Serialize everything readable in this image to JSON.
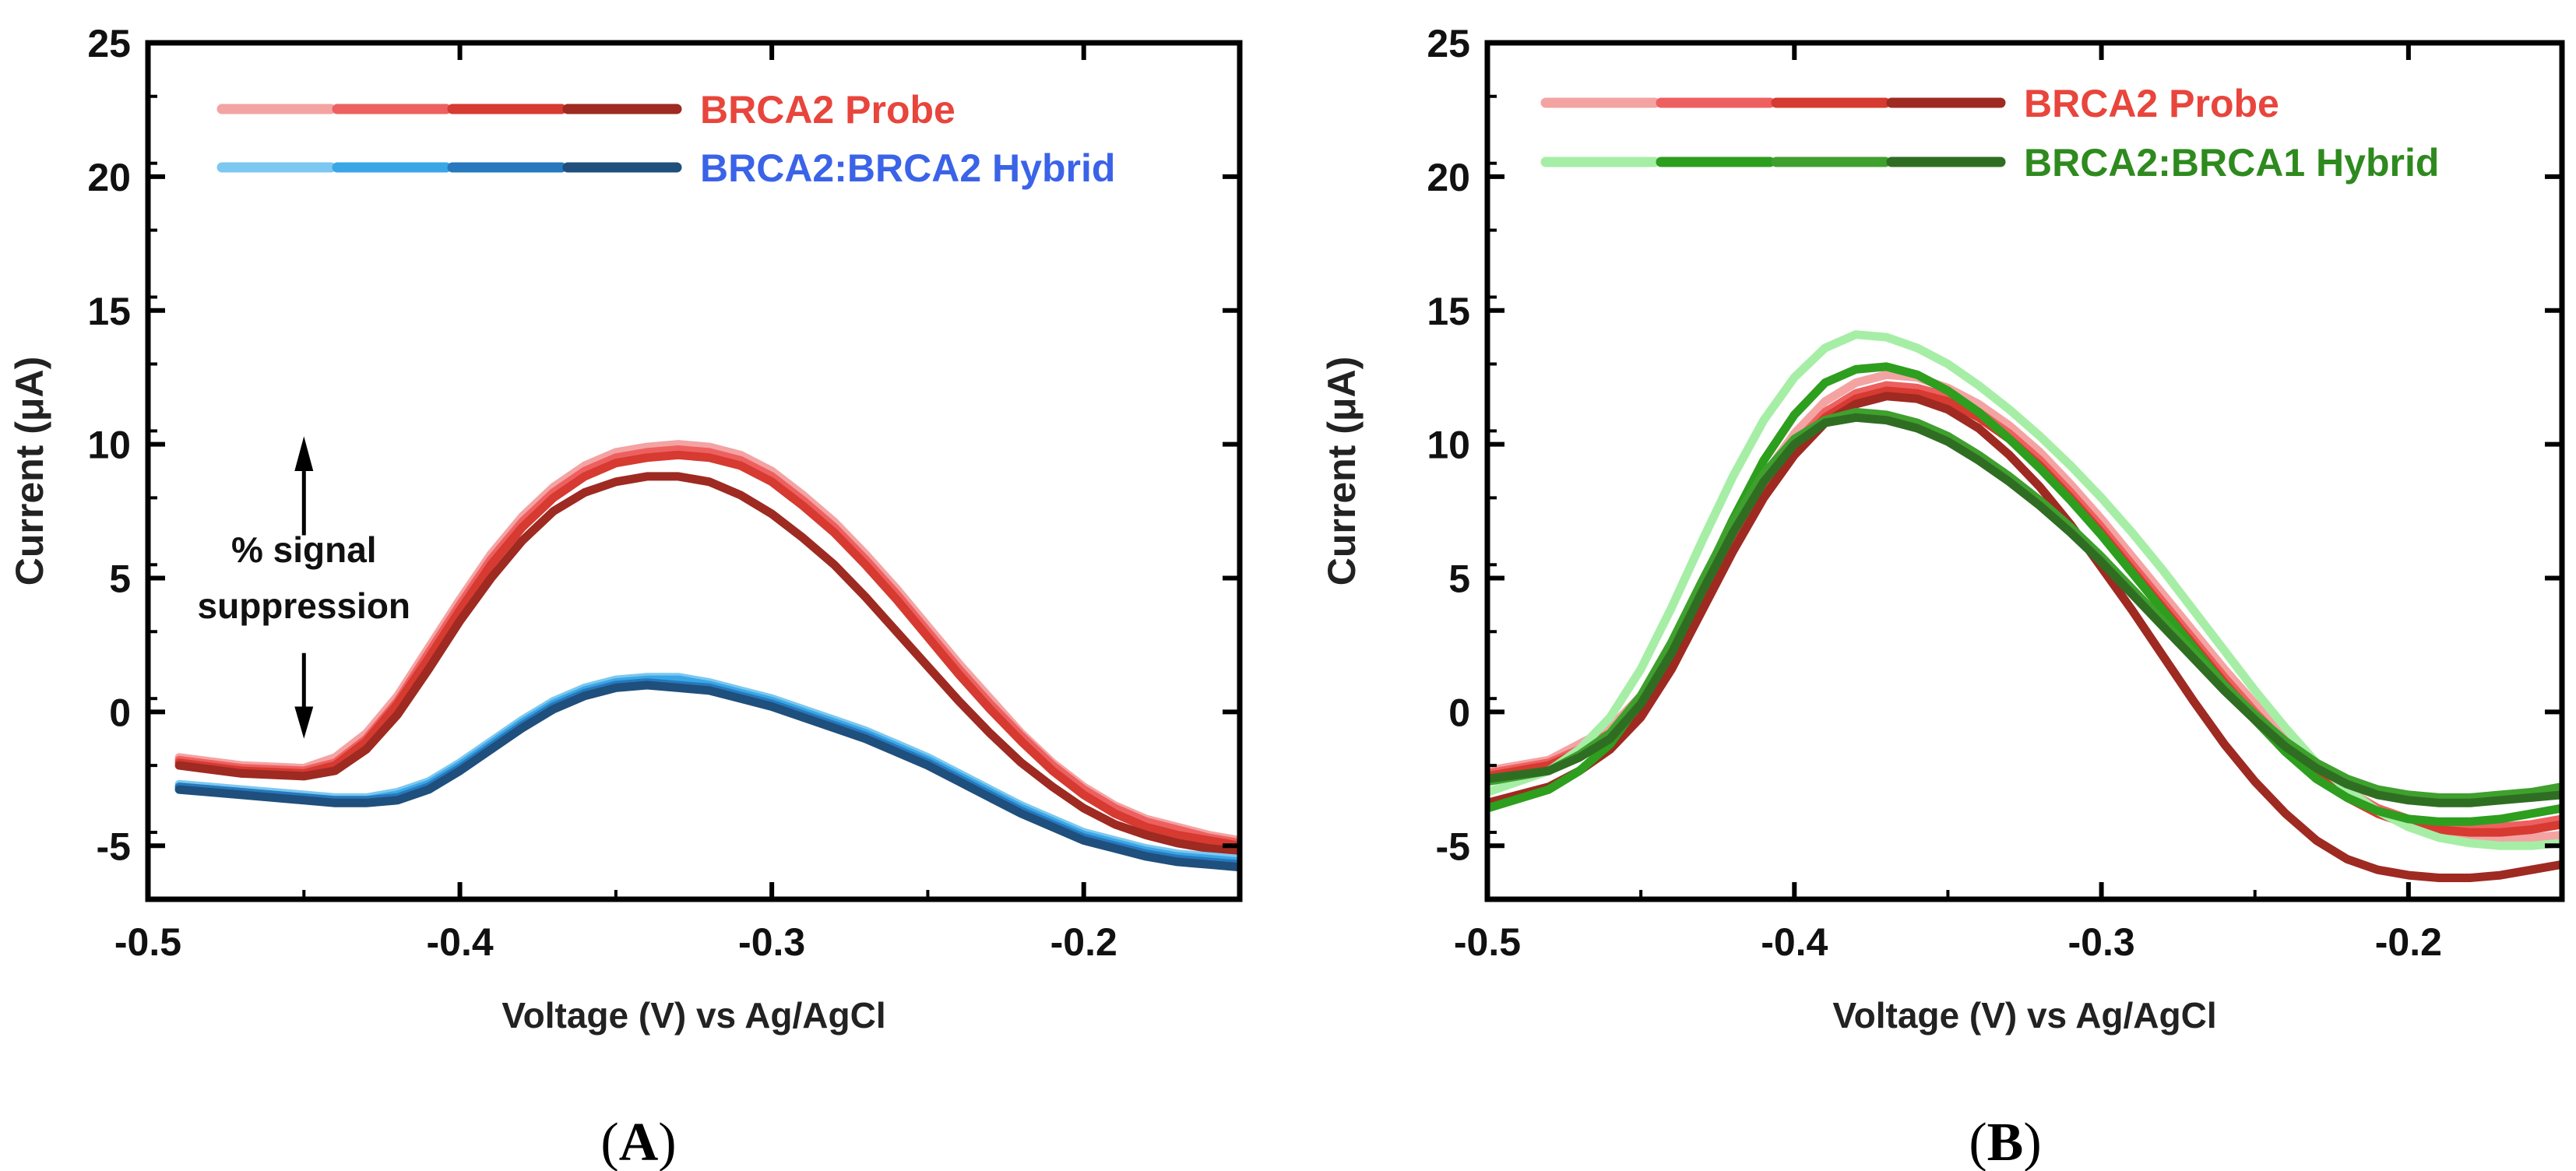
{
  "chart_data": [
    {
      "type": "line",
      "panel": "(A)",
      "panel_label": {
        "open": "(",
        "letter": "A",
        "close": ")"
      },
      "xlabel": "Voltage (V) vs Ag/AgCl",
      "ylabel": "Current (μA)",
      "xlim": [
        -0.5,
        -0.15
      ],
      "ylim": [
        -7,
        25
      ],
      "xticks": [
        -0.5,
        -0.4,
        -0.3,
        -0.2
      ],
      "yticks": [
        -5,
        0,
        5,
        10,
        15,
        20,
        25
      ],
      "x_tick_labels": [
        "-0.5",
        "-0.4",
        "-0.3",
        "-0.2"
      ],
      "y_tick_labels": [
        "-5",
        "0",
        "5",
        "10",
        "15",
        "20",
        "25"
      ],
      "legend_position": "top-left",
      "legend": [
        {
          "label": "BRCA2 Probe",
          "text_color": "#e8453c",
          "colors": [
            "#f4a3a3",
            "#ee6060",
            "#d63a30",
            "#9e2a22"
          ]
        },
        {
          "label": "BRCA2:BRCA2 Hybrid",
          "text_color": "#3a63e8",
          "colors": [
            "#7cc8f0",
            "#3aa6e6",
            "#2778bd",
            "#1f4f7c"
          ]
        }
      ],
      "annotation": {
        "line1": "% signal",
        "line2": "suppression"
      },
      "x": [
        -0.49,
        -0.47,
        -0.45,
        -0.44,
        -0.43,
        -0.42,
        -0.41,
        -0.4,
        -0.39,
        -0.38,
        -0.37,
        -0.36,
        -0.35,
        -0.34,
        -0.33,
        -0.32,
        -0.31,
        -0.3,
        -0.29,
        -0.28,
        -0.27,
        -0.26,
        -0.25,
        -0.24,
        -0.23,
        -0.22,
        -0.21,
        -0.2,
        -0.19,
        -0.18,
        -0.17,
        -0.16,
        -0.15
      ],
      "series": [
        {
          "name": "BRCA2 Probe 1",
          "color": "#f4a3a3",
          "values": [
            -1.7,
            -2.0,
            -2.1,
            -1.7,
            -0.8,
            0.6,
            2.4,
            4.2,
            5.9,
            7.3,
            8.4,
            9.2,
            9.7,
            9.9,
            10.0,
            9.9,
            9.6,
            9.0,
            8.1,
            7.1,
            5.9,
            4.6,
            3.2,
            1.8,
            0.5,
            -0.8,
            -1.9,
            -2.8,
            -3.5,
            -4.0,
            -4.3,
            -4.6,
            -4.8
          ]
        },
        {
          "name": "BRCA2 Probe 2",
          "color": "#ee6060",
          "values": [
            -1.8,
            -2.1,
            -2.2,
            -1.9,
            -1.0,
            0.4,
            2.2,
            4.0,
            5.7,
            7.1,
            8.2,
            9.0,
            9.5,
            9.7,
            9.8,
            9.7,
            9.4,
            8.8,
            7.9,
            6.9,
            5.7,
            4.4,
            3.0,
            1.6,
            0.3,
            -0.9,
            -2.0,
            -2.9,
            -3.6,
            -4.1,
            -4.4,
            -4.7,
            -4.9
          ]
        },
        {
          "name": "BRCA2 Probe 3",
          "color": "#d63a30",
          "values": [
            -1.9,
            -2.2,
            -2.3,
            -2.0,
            -1.1,
            0.3,
            2.0,
            3.8,
            5.5,
            6.9,
            8.0,
            8.8,
            9.3,
            9.5,
            9.6,
            9.5,
            9.2,
            8.6,
            7.7,
            6.7,
            5.5,
            4.2,
            2.8,
            1.4,
            0.1,
            -1.1,
            -2.2,
            -3.1,
            -3.8,
            -4.3,
            -4.6,
            -4.8,
            -5.0
          ]
        },
        {
          "name": "BRCA2 Probe 4",
          "color": "#9e2a22",
          "values": [
            -2.0,
            -2.3,
            -2.4,
            -2.2,
            -1.4,
            -0.1,
            1.6,
            3.4,
            5.0,
            6.4,
            7.5,
            8.2,
            8.6,
            8.8,
            8.8,
            8.6,
            8.1,
            7.4,
            6.5,
            5.5,
            4.3,
            3.0,
            1.7,
            0.4,
            -0.8,
            -1.9,
            -2.8,
            -3.6,
            -4.2,
            -4.6,
            -4.9,
            -5.1,
            -5.2
          ]
        },
        {
          "name": "BRCA2:BRCA2 Hybrid 1",
          "color": "#7cc8f0",
          "values": [
            -2.7,
            -2.9,
            -3.1,
            -3.2,
            -3.2,
            -3.0,
            -2.6,
            -1.9,
            -1.1,
            -0.3,
            0.4,
            0.9,
            1.2,
            1.3,
            1.3,
            1.1,
            0.8,
            0.5,
            0.1,
            -0.3,
            -0.7,
            -1.2,
            -1.7,
            -2.3,
            -2.9,
            -3.5,
            -4.0,
            -4.5,
            -4.8,
            -5.1,
            -5.3,
            -5.4,
            -5.5
          ]
        },
        {
          "name": "BRCA2:BRCA2 Hybrid 2",
          "color": "#3aa6e6",
          "values": [
            -2.8,
            -3.0,
            -3.2,
            -3.3,
            -3.3,
            -3.1,
            -2.7,
            -2.0,
            -1.2,
            -0.4,
            0.3,
            0.8,
            1.1,
            1.2,
            1.2,
            1.0,
            0.7,
            0.4,
            0.0,
            -0.4,
            -0.8,
            -1.3,
            -1.8,
            -2.4,
            -3.0,
            -3.6,
            -4.1,
            -4.6,
            -4.9,
            -5.2,
            -5.4,
            -5.5,
            -5.6
          ]
        },
        {
          "name": "BRCA2:BRCA2 Hybrid 3",
          "color": "#2778bd",
          "values": [
            -2.8,
            -3.0,
            -3.2,
            -3.3,
            -3.3,
            -3.2,
            -2.8,
            -2.1,
            -1.3,
            -0.5,
            0.2,
            0.7,
            1.0,
            1.1,
            1.0,
            0.9,
            0.6,
            0.3,
            -0.1,
            -0.5,
            -0.9,
            -1.4,
            -1.9,
            -2.5,
            -3.1,
            -3.7,
            -4.2,
            -4.7,
            -5.0,
            -5.3,
            -5.5,
            -5.6,
            -5.7
          ]
        },
        {
          "name": "BRCA2:BRCA2 Hybrid 4",
          "color": "#1f4f7c",
          "values": [
            -2.9,
            -3.1,
            -3.3,
            -3.4,
            -3.4,
            -3.3,
            -2.9,
            -2.2,
            -1.4,
            -0.6,
            0.1,
            0.6,
            0.9,
            1.0,
            0.9,
            0.8,
            0.5,
            0.2,
            -0.2,
            -0.6,
            -1.0,
            -1.5,
            -2.0,
            -2.6,
            -3.2,
            -3.8,
            -4.3,
            -4.8,
            -5.1,
            -5.4,
            -5.6,
            -5.7,
            -5.8
          ]
        }
      ]
    },
    {
      "type": "line",
      "panel": "(B)",
      "panel_label": {
        "open": "(",
        "letter": "B",
        "close": ")"
      },
      "xlabel": "Voltage (V) vs Ag/AgCl",
      "ylabel": "Current (μA)",
      "xlim": [
        -0.5,
        -0.15
      ],
      "ylim": [
        -7,
        25
      ],
      "xticks": [
        -0.5,
        -0.4,
        -0.3,
        -0.2
      ],
      "yticks": [
        -5,
        0,
        5,
        10,
        15,
        20,
        25
      ],
      "x_tick_labels": [
        "-0.5",
        "-0.4",
        "-0.3",
        "-0.2"
      ],
      "y_tick_labels": [
        "-5",
        "0",
        "5",
        "10",
        "15",
        "20",
        "25"
      ],
      "legend_position": "top-left",
      "legend": [
        {
          "label": "BRCA2 Probe",
          "text_color": "#e8453c",
          "colors": [
            "#f4a3a3",
            "#ee6060",
            "#d63a30",
            "#9e2a22"
          ]
        },
        {
          "label": "BRCA2:BRCA1 Hybrid",
          "text_color": "#2e8a1e",
          "colors": [
            "#a6eea6",
            "#2e9e1e",
            "#3fa02e",
            "#2f6e22"
          ]
        }
      ],
      "x": [
        -0.5,
        -0.48,
        -0.47,
        -0.46,
        -0.45,
        -0.44,
        -0.43,
        -0.42,
        -0.41,
        -0.4,
        -0.39,
        -0.38,
        -0.37,
        -0.36,
        -0.35,
        -0.34,
        -0.33,
        -0.32,
        -0.31,
        -0.3,
        -0.29,
        -0.28,
        -0.27,
        -0.26,
        -0.25,
        -0.24,
        -0.23,
        -0.22,
        -0.21,
        -0.2,
        -0.19,
        -0.18,
        -0.17,
        -0.16,
        -0.15
      ],
      "series": [
        {
          "name": "BRCA2 Probe 1",
          "color": "#f4a3a3",
          "values": [
            -2.2,
            -1.8,
            -1.2,
            -0.6,
            0.6,
            2.4,
            4.6,
            6.8,
            8.8,
            10.4,
            11.6,
            12.3,
            12.6,
            12.5,
            12.1,
            11.5,
            10.7,
            9.7,
            8.5,
            7.2,
            5.8,
            4.4,
            3.0,
            1.6,
            0.3,
            -0.9,
            -2.0,
            -2.9,
            -3.6,
            -4.1,
            -4.4,
            -4.6,
            -4.7,
            -4.7,
            -4.6
          ]
        },
        {
          "name": "BRCA2 Probe 2",
          "color": "#ee6060",
          "values": [
            -2.3,
            -1.9,
            -1.4,
            -0.8,
            0.3,
            2.0,
            4.2,
            6.4,
            8.4,
            10.0,
            11.2,
            11.9,
            12.2,
            12.1,
            11.8,
            11.2,
            10.4,
            9.4,
            8.2,
            6.9,
            5.5,
            4.1,
            2.7,
            1.3,
            0.0,
            -1.2,
            -2.2,
            -3.0,
            -3.6,
            -4.0,
            -4.2,
            -4.3,
            -4.3,
            -4.2,
            -4.0
          ]
        },
        {
          "name": "BRCA2 Probe 3",
          "color": "#d63a30",
          "values": [
            -2.4,
            -2.0,
            -1.5,
            -0.9,
            0.2,
            1.8,
            4.0,
            6.2,
            8.2,
            9.8,
            11.0,
            11.7,
            12.0,
            11.9,
            11.6,
            11.0,
            10.2,
            9.2,
            8.0,
            6.7,
            5.3,
            3.9,
            2.5,
            1.1,
            -0.2,
            -1.4,
            -2.4,
            -3.2,
            -3.8,
            -4.2,
            -4.4,
            -4.5,
            -4.5,
            -4.4,
            -4.2
          ]
        },
        {
          "name": "BRCA2 Probe 4",
          "color": "#9e2a22",
          "values": [
            -3.4,
            -2.8,
            -2.2,
            -1.4,
            -0.2,
            1.6,
            3.8,
            6.0,
            8.0,
            9.6,
            10.8,
            11.5,
            11.8,
            11.7,
            11.3,
            10.6,
            9.6,
            8.4,
            7.0,
            5.4,
            3.8,
            2.1,
            0.4,
            -1.2,
            -2.6,
            -3.8,
            -4.8,
            -5.5,
            -5.9,
            -6.1,
            -6.2,
            -6.2,
            -6.1,
            -5.9,
            -5.7
          ]
        },
        {
          "name": "BRCA2:BRCA1 Hybrid 1",
          "color": "#a6eea6",
          "values": [
            -3.0,
            -2.2,
            -1.4,
            -0.2,
            1.6,
            3.9,
            6.4,
            8.8,
            10.9,
            12.5,
            13.6,
            14.1,
            14.0,
            13.6,
            13.0,
            12.2,
            11.3,
            10.3,
            9.2,
            8.0,
            6.7,
            5.3,
            3.8,
            2.3,
            0.8,
            -0.6,
            -1.9,
            -2.9,
            -3.7,
            -4.3,
            -4.7,
            -4.9,
            -5.0,
            -5.0,
            -4.9
          ]
        },
        {
          "name": "BRCA2:BRCA1 Hybrid 2",
          "color": "#2e9e1e",
          "values": [
            -3.6,
            -2.9,
            -2.2,
            -1.2,
            0.4,
            2.4,
            4.8,
            7.2,
            9.4,
            11.1,
            12.3,
            12.8,
            12.9,
            12.6,
            12.0,
            11.2,
            10.2,
            9.1,
            7.9,
            6.6,
            5.2,
            3.8,
            2.4,
            1.0,
            -0.3,
            -1.5,
            -2.5,
            -3.2,
            -3.7,
            -4.0,
            -4.1,
            -4.1,
            -4.0,
            -3.8,
            -3.6
          ]
        },
        {
          "name": "BRCA2:BRCA1 Hybrid 3",
          "color": "#3fa02e",
          "values": [
            -2.6,
            -2.2,
            -1.6,
            -0.8,
            0.6,
            2.6,
            4.9,
            7.1,
            8.9,
            10.2,
            10.9,
            11.2,
            11.1,
            10.8,
            10.3,
            9.6,
            8.8,
            7.9,
            6.9,
            5.8,
            4.6,
            3.4,
            2.2,
            1.0,
            -0.1,
            -1.1,
            -1.9,
            -2.5,
            -2.9,
            -3.1,
            -3.2,
            -3.2,
            -3.1,
            -3.0,
            -2.8
          ]
        },
        {
          "name": "BRCA2:BRCA1 Hybrid 4",
          "color": "#2f6e22",
          "values": [
            -2.5,
            -2.2,
            -1.7,
            -1.0,
            0.3,
            2.2,
            4.5,
            6.7,
            8.6,
            10.0,
            10.8,
            11.0,
            10.9,
            10.6,
            10.1,
            9.4,
            8.6,
            7.7,
            6.7,
            5.6,
            4.4,
            3.2,
            2.0,
            0.8,
            -0.3,
            -1.3,
            -2.1,
            -2.7,
            -3.1,
            -3.3,
            -3.4,
            -3.4,
            -3.3,
            -3.2,
            -3.1
          ]
        }
      ]
    }
  ]
}
